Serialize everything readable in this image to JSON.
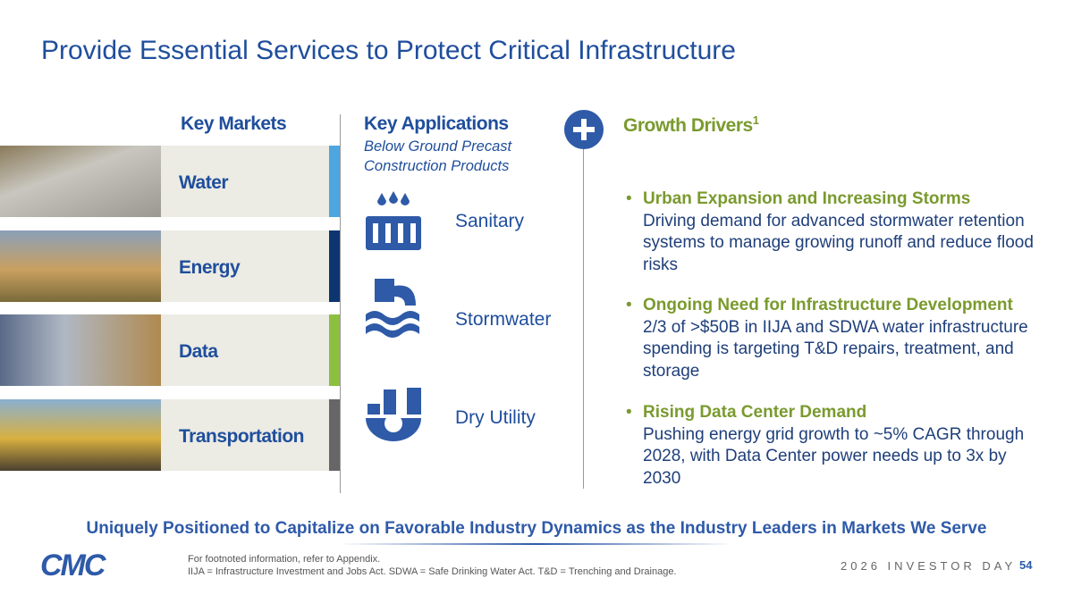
{
  "title": "Provide Essential Services to Protect Critical Infrastructure",
  "markets": {
    "heading": "Key Markets",
    "items": [
      "Water",
      "Energy",
      "Data",
      "Transportation"
    ]
  },
  "applications": {
    "heading": "Key Applications",
    "subheading": "Below Ground Precast Construction Products",
    "items": [
      "Sanitary",
      "Stormwater",
      "Dry Utility"
    ]
  },
  "growth": {
    "heading": "Growth Drivers",
    "footnote_mark": "1",
    "bullets": [
      {
        "title": "Urban Expansion and Increasing Storms",
        "text": "Driving demand for advanced stormwater retention systems to manage growing runoff and reduce flood risks"
      },
      {
        "title": "Ongoing Need for Infrastructure Development",
        "text": "2/3 of >$50B in IIJA and SDWA water infrastructure spending is targeting T&D repairs, treatment, and storage"
      },
      {
        "title": "Rising Data Center Demand",
        "text": "Pushing energy grid growth to ~5% CAGR through 2028, with Data Center power needs up to 3x by 2030"
      }
    ]
  },
  "tagline": "Uniquely Positioned to Capitalize on Favorable Industry Dynamics as the Industry Leaders in Markets We Serve",
  "footnotes": [
    "For footnoted information, refer to Appendix.",
    "IIJA = Infrastructure Investment and Jobs Act. SDWA = Safe Drinking Water Act. T&D = Trenching and Drainage."
  ],
  "footer": {
    "logo": "CMC",
    "event": "2026 INVESTOR DAY",
    "page": "54"
  }
}
